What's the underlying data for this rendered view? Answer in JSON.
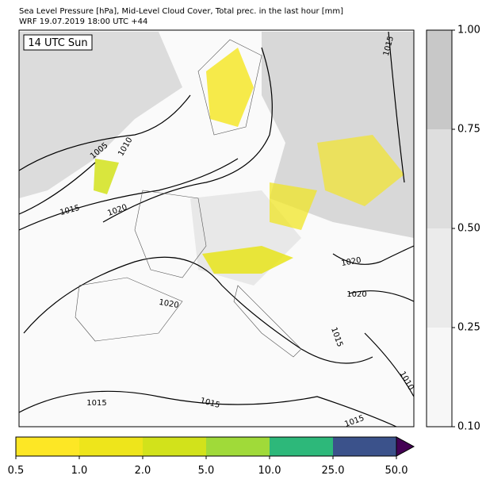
{
  "header": {
    "title": "Sea Level Pressure [hPa], Mid-Level Cloud Cover, Total prec. in the last hour [mm]",
    "subtitle": "WRF 19.07.2019 18:00 UTC +44"
  },
  "map": {
    "time_label": "14 UTC Sun",
    "contour_labels": [
      "1005",
      "1010",
      "1015",
      "1020",
      "1015",
      "1020",
      "1020",
      "1020",
      "1015",
      "1015",
      "1015",
      "1010",
      "1015"
    ]
  },
  "cloud_colorbar": {
    "ticks": [
      "0.10",
      "0.25",
      "0.50",
      "0.75",
      "1.00"
    ],
    "colors": [
      "#f7f7f7",
      "#ebebeb",
      "#dedede",
      "#c8c8c8"
    ]
  },
  "precip_colorbar": {
    "ticks": [
      "0.5",
      "1.0",
      "2.0",
      "5.0",
      "10.0",
      "25.0",
      "50.0"
    ],
    "colors": [
      "#fde725",
      "#eee51b",
      "#d2e21b",
      "#a0da39",
      "#2db87a",
      "#3b528b"
    ],
    "extend_color": "#440154"
  }
}
